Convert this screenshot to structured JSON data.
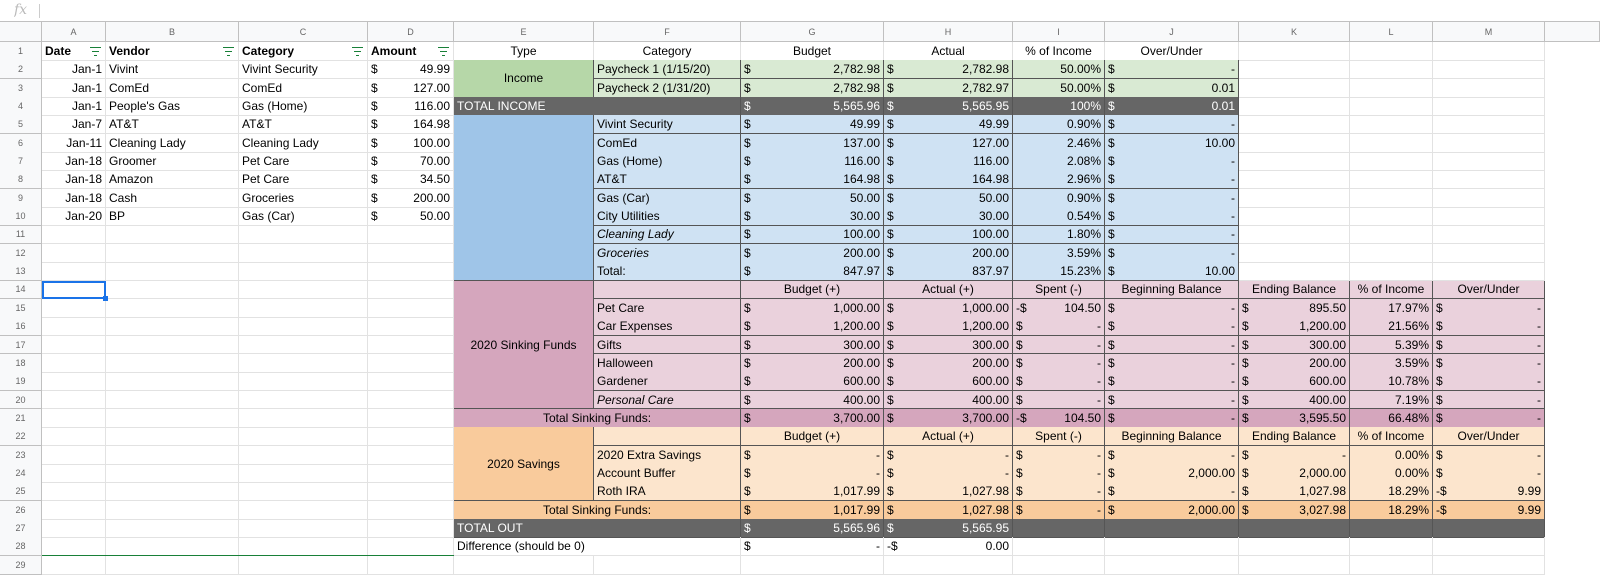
{
  "sheet": {
    "formula_bar": "fx",
    "columns": [
      "A",
      "B",
      "C",
      "D",
      "E",
      "F",
      "G",
      "H",
      "I",
      "J",
      "K",
      "L",
      "M"
    ],
    "row_numbers": [
      1,
      2,
      3,
      4,
      5,
      6,
      7,
      8,
      9,
      10,
      11,
      12,
      13,
      14,
      15,
      16,
      17,
      18,
      19,
      20,
      21,
      22,
      23,
      24,
      25,
      26,
      27,
      28,
      29
    ],
    "rows": [
      [
        "Date",
        "Vendor",
        "Category",
        "Amount",
        "Type",
        "Category",
        "Budget",
        "Actual",
        "% of Income",
        "Over/Under"
      ],
      [
        "Jan-1",
        "Vivint",
        "Vivint Security",
        [
          "$",
          "49.99"
        ],
        "Income",
        "Paycheck 1 (1/15/20)",
        [
          "$",
          "2,782.98"
        ],
        [
          "$",
          "2,782.98"
        ],
        "50.00%",
        [
          "$",
          "-"
        ]
      ],
      [
        "Jan-1",
        "ComEd",
        "ComEd",
        [
          "$",
          "127.00"
        ],
        null,
        "Paycheck 2 (1/31/20)",
        [
          "$",
          "2,782.98"
        ],
        [
          "$",
          "2,782.97"
        ],
        "50.00%",
        [
          "$",
          "0.01"
        ]
      ],
      [
        "Jan-1",
        "People's Gas",
        "Gas (Home)",
        [
          "$",
          "116.00"
        ],
        "TOTAL INCOME",
        null,
        [
          "$",
          "5,565.96"
        ],
        [
          "$",
          "5,565.95"
        ],
        "100%",
        [
          "$",
          "0.01"
        ]
      ],
      [
        "Jan-7",
        "AT&T",
        "AT&T",
        [
          "$",
          "164.98"
        ],
        null,
        "Vivint Security",
        [
          "$",
          "49.99"
        ],
        [
          "$",
          "49.99"
        ],
        "0.90%",
        [
          "$",
          "-"
        ]
      ],
      [
        "Jan-11",
        "Cleaning Lady",
        "Cleaning Lady",
        [
          "$",
          "100.00"
        ],
        null,
        "ComEd",
        [
          "$",
          "137.00"
        ],
        [
          "$",
          "127.00"
        ],
        "2.46%",
        [
          "$",
          "10.00"
        ]
      ],
      [
        "Jan-18",
        "Groomer",
        "Pet Care",
        [
          "$",
          "70.00"
        ],
        null,
        "Gas (Home)",
        [
          "$",
          "116.00"
        ],
        [
          "$",
          "116.00"
        ],
        "2.08%",
        [
          "$",
          "-"
        ]
      ],
      [
        "Jan-18",
        "Amazon",
        "Pet Care",
        [
          "$",
          "34.50"
        ],
        null,
        "AT&T",
        [
          "$",
          "164.98"
        ],
        [
          "$",
          "164.98"
        ],
        "2.96%",
        [
          "$",
          "-"
        ]
      ],
      [
        "Jan-18",
        "Cash",
        "Groceries",
        [
          "$",
          "200.00"
        ],
        null,
        "Gas (Car)",
        [
          "$",
          "50.00"
        ],
        [
          "$",
          "50.00"
        ],
        "0.90%",
        [
          "$",
          "-"
        ]
      ],
      [
        "Jan-20",
        "BP",
        "Gas (Car)",
        [
          "$",
          "50.00"
        ],
        null,
        "City Utilities",
        [
          "$",
          "30.00"
        ],
        [
          "$",
          "30.00"
        ],
        "0.54%",
        [
          "$",
          "-"
        ]
      ],
      [
        null,
        null,
        null,
        null,
        null,
        "Cleaning Lady",
        [
          "$",
          "100.00"
        ],
        [
          "$",
          "100.00"
        ],
        "1.80%",
        [
          "$",
          "-"
        ]
      ],
      [
        null,
        null,
        null,
        null,
        null,
        "Groceries",
        [
          "$",
          "200.00"
        ],
        [
          "$",
          "200.00"
        ],
        "3.59%",
        [
          "$",
          "-"
        ]
      ],
      [
        null,
        null,
        null,
        null,
        null,
        "Total:",
        [
          "$",
          "847.97"
        ],
        [
          "$",
          "837.97"
        ],
        "15.23%",
        [
          "$",
          "10.00"
        ]
      ],
      [
        null,
        null,
        null,
        null,
        "2020 Sinking Funds",
        null,
        "Budget (+)",
        "Actual (+)",
        "Spent (-)",
        "Beginning Balance",
        "Ending Balance",
        "% of Income",
        "Over/Under"
      ],
      [
        null,
        null,
        null,
        null,
        null,
        "Pet Care",
        [
          "$",
          "1,000.00"
        ],
        [
          "$",
          "1,000.00"
        ],
        [
          "-$",
          "104.50"
        ],
        [
          "$",
          "-"
        ],
        [
          "$",
          "895.50"
        ],
        "17.97%",
        [
          "$",
          "-"
        ]
      ],
      [
        null,
        null,
        null,
        null,
        null,
        "Car Expenses",
        [
          "$",
          "1,200.00"
        ],
        [
          "$",
          "1,200.00"
        ],
        [
          "$",
          "-"
        ],
        [
          "$",
          "-"
        ],
        [
          "$",
          "1,200.00"
        ],
        "21.56%",
        [
          "$",
          "-"
        ]
      ],
      [
        null,
        null,
        null,
        null,
        null,
        "Gifts",
        [
          "$",
          "300.00"
        ],
        [
          "$",
          "300.00"
        ],
        [
          "$",
          "-"
        ],
        [
          "$",
          "-"
        ],
        [
          "$",
          "300.00"
        ],
        "5.39%",
        [
          "$",
          "-"
        ]
      ],
      [
        null,
        null,
        null,
        null,
        null,
        "Halloween",
        [
          "$",
          "200.00"
        ],
        [
          "$",
          "200.00"
        ],
        [
          "$",
          "-"
        ],
        [
          "$",
          "-"
        ],
        [
          "$",
          "200.00"
        ],
        "3.59%",
        [
          "$",
          "-"
        ]
      ],
      [
        null,
        null,
        null,
        null,
        null,
        "Gardener",
        [
          "$",
          "600.00"
        ],
        [
          "$",
          "600.00"
        ],
        [
          "$",
          "-"
        ],
        [
          "$",
          "-"
        ],
        [
          "$",
          "600.00"
        ],
        "10.78%",
        [
          "$",
          "-"
        ]
      ],
      [
        null,
        null,
        null,
        null,
        null,
        "Personal Care",
        [
          "$",
          "400.00"
        ],
        [
          "$",
          "400.00"
        ],
        [
          "$",
          "-"
        ],
        [
          "$",
          "-"
        ],
        [
          "$",
          "400.00"
        ],
        "7.19%",
        [
          "$",
          "-"
        ]
      ],
      [
        null,
        null,
        null,
        null,
        "Total Sinking Funds:",
        null,
        [
          "$",
          "3,700.00"
        ],
        [
          "$",
          "3,700.00"
        ],
        [
          "-$",
          "104.50"
        ],
        [
          "$",
          "-"
        ],
        [
          "$",
          "3,595.50"
        ],
        "66.48%",
        [
          "$",
          "-"
        ]
      ],
      [
        null,
        null,
        null,
        null,
        "2020 Savings",
        null,
        "Budget (+)",
        "Actual (+)",
        "Spent (-)",
        "Beginning Balance",
        "Ending Balance",
        "% of Income",
        "Over/Under"
      ],
      [
        null,
        null,
        null,
        null,
        null,
        "2020 Extra Savings",
        [
          "$",
          "-"
        ],
        [
          "$",
          "-"
        ],
        [
          "$",
          "-"
        ],
        [
          "$",
          "-"
        ],
        [
          "$",
          "-"
        ],
        "0.00%",
        [
          "$",
          "-"
        ]
      ],
      [
        null,
        null,
        null,
        null,
        null,
        "Account Buffer",
        [
          "$",
          "-"
        ],
        [
          "$",
          "-"
        ],
        [
          "$",
          "-"
        ],
        [
          "$",
          "2,000.00"
        ],
        [
          "$",
          "2,000.00"
        ],
        "0.00%",
        [
          "$",
          "-"
        ]
      ],
      [
        null,
        null,
        null,
        null,
        null,
        "Roth IRA",
        [
          "$",
          "1,017.99"
        ],
        [
          "$",
          "1,027.98"
        ],
        [
          "$",
          "-"
        ],
        [
          "$",
          "-"
        ],
        [
          "$",
          "1,027.98"
        ],
        "18.29%",
        [
          "-$",
          "9.99"
        ]
      ],
      [
        null,
        null,
        null,
        null,
        "Total Sinking Funds:",
        null,
        [
          "$",
          "1,017.99"
        ],
        [
          "$",
          "1,027.98"
        ],
        [
          "$",
          "-"
        ],
        [
          "$",
          "2,000.00"
        ],
        [
          "$",
          "3,027.98"
        ],
        "18.29%",
        [
          "-$",
          "9.99"
        ]
      ],
      [
        null,
        null,
        null,
        null,
        "TOTAL OUT",
        null,
        [
          "$",
          "5,565.96"
        ],
        [
          "$",
          "5,565.95"
        ]
      ],
      [
        null,
        null,
        null,
        null,
        "Difference (should be 0)",
        null,
        [
          "$",
          "-"
        ],
        [
          "-$",
          "0.00"
        ]
      ]
    ]
  }
}
